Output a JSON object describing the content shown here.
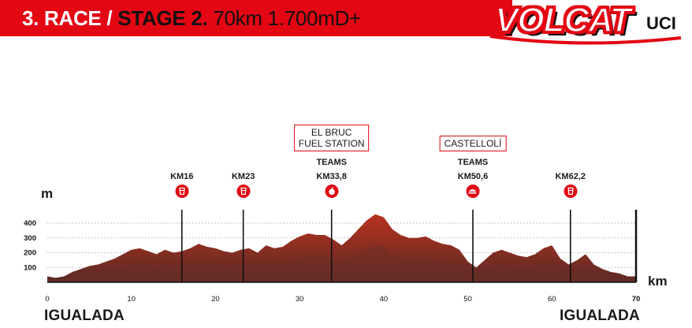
{
  "header": {
    "race": "3. RACE /",
    "stage": "STAGE 2.",
    "details": "70km 1.700mD+"
  },
  "logo": {
    "brand": "VOLCAT",
    "uci": "UCI"
  },
  "axes": {
    "y_unit": "m",
    "x_unit": "km"
  },
  "places": {
    "start": "IGUALADA",
    "end": "IGUALADA"
  },
  "checkpoints": [
    {
      "km_label": "KM16",
      "icon": "drink-icon"
    },
    {
      "km_label": "KM23",
      "icon": "drink-icon"
    },
    {
      "km_label": "KM33,8",
      "teams": "TEAMS",
      "icon": "food-icon",
      "box_line1": "EL BRUC",
      "box_line2": "FUEL STATION"
    },
    {
      "km_label": "KM50,6",
      "teams": "TEAMS",
      "icon": "meal-icon",
      "box_line1": "CASTELLOLÍ"
    },
    {
      "km_label": "KM62,2",
      "icon": "drink-icon"
    }
  ],
  "chart_data": {
    "type": "area",
    "title": "",
    "xlabel": "km",
    "ylabel": "m",
    "xlim": [
      0,
      70
    ],
    "ylim": [
      0,
      480
    ],
    "x_ticks": [
      0,
      10,
      20,
      30,
      40,
      50,
      60,
      70
    ],
    "y_ticks": [
      100,
      200,
      300,
      400
    ],
    "checkpoint_km": [
      16,
      23.3,
      33.8,
      50.6,
      62.2
    ],
    "series": [
      {
        "x": [
          0,
          1,
          2,
          3,
          4,
          5,
          6,
          7,
          8,
          9,
          10,
          11,
          12,
          13,
          14,
          15,
          16,
          17,
          18,
          19,
          20,
          21,
          22,
          23,
          24,
          25,
          26,
          27,
          28,
          29,
          30,
          31,
          32,
          33,
          34,
          35,
          36,
          37,
          38,
          39,
          40,
          41,
          42,
          43,
          44,
          45,
          46,
          47,
          48,
          49,
          50,
          51,
          52,
          53,
          54,
          55,
          56,
          57,
          58,
          59,
          60,
          61,
          62,
          63,
          64,
          65,
          66,
          67,
          68,
          69,
          70
        ],
        "y": [
          40,
          30,
          40,
          70,
          90,
          110,
          120,
          140,
          160,
          190,
          220,
          230,
          210,
          190,
          220,
          200,
          210,
          230,
          260,
          240,
          230,
          210,
          200,
          220,
          230,
          200,
          250,
          230,
          240,
          280,
          310,
          330,
          320,
          320,
          290,
          250,
          300,
          360,
          420,
          460,
          440,
          360,
          320,
          300,
          300,
          310,
          280,
          260,
          250,
          220,
          140,
          100,
          150,
          200,
          220,
          200,
          180,
          170,
          190,
          230,
          250,
          160,
          120,
          150,
          190,
          120,
          90,
          70,
          60,
          40,
          40
        ]
      }
    ]
  }
}
